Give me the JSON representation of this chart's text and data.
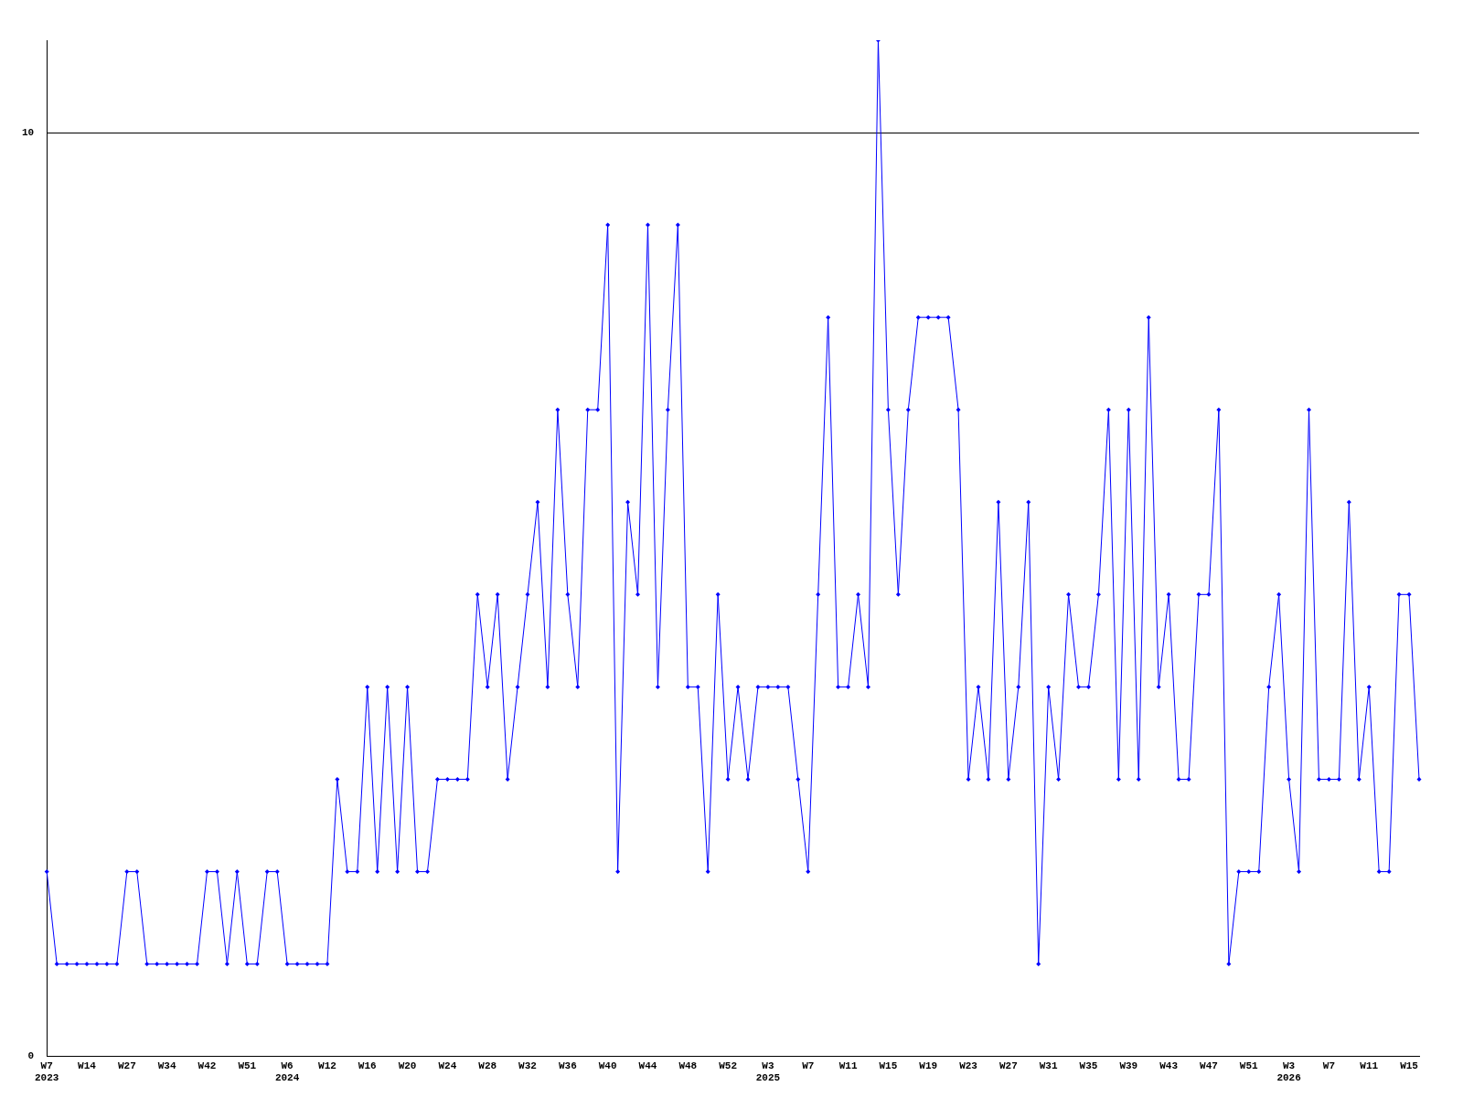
{
  "chart_data": {
    "type": "line",
    "categories": [
      "W7\n2023",
      null,
      null,
      null,
      "W14",
      null,
      null,
      null,
      "W27",
      null,
      null,
      null,
      "W34",
      null,
      null,
      null,
      "W42",
      null,
      null,
      null,
      "W51",
      null,
      null,
      null,
      "W6\n2024",
      null,
      null,
      null,
      "W12",
      null,
      null,
      null,
      "W16",
      null,
      null,
      null,
      "W20",
      null,
      null,
      null,
      "W24",
      null,
      null,
      null,
      "W28",
      null,
      null,
      null,
      "W32",
      null,
      null,
      null,
      "W36",
      null,
      null,
      null,
      "W40",
      null,
      null,
      null,
      "W44",
      null,
      null,
      null,
      "W48",
      null,
      null,
      null,
      "W52",
      null,
      null,
      null,
      "W3\n2025",
      null,
      null,
      null,
      "W7",
      null,
      null,
      null,
      "W11",
      null,
      null,
      null,
      "W15",
      null,
      null,
      null,
      "W19",
      null,
      null,
      null,
      "W23",
      null,
      null,
      null,
      "W27",
      null,
      null,
      null,
      "W31",
      null,
      null,
      null,
      "W35",
      null,
      null,
      null,
      "W39",
      null,
      null,
      null,
      "W43",
      null,
      null,
      null,
      "W47",
      null,
      null,
      null,
      "W51",
      null,
      null,
      null,
      "W3\n2026",
      null,
      null,
      null,
      "W7",
      null,
      null,
      null,
      "W11",
      null,
      null,
      null,
      "W15",
      null
    ],
    "values": [
      2,
      1,
      1,
      1,
      1,
      1,
      1,
      1,
      2,
      2,
      1,
      1,
      1,
      1,
      1,
      1,
      2,
      2,
      1,
      2,
      1,
      1,
      2,
      2,
      1,
      1,
      1,
      1,
      1,
      3,
      2,
      2,
      4,
      2,
      4,
      2,
      4,
      2,
      2,
      3,
      3,
      3,
      3,
      5,
      4,
      5,
      3,
      4,
      5,
      6,
      4,
      7,
      5,
      4,
      7,
      7,
      9,
      2,
      6,
      5,
      9,
      4,
      7,
      9,
      4,
      4,
      2,
      5,
      3,
      4,
      3,
      4,
      4,
      4,
      4,
      3,
      2,
      5,
      8,
      4,
      4,
      5,
      4,
      11,
      7,
      5,
      7,
      8,
      8,
      8,
      8,
      7,
      3,
      4,
      3,
      6,
      3,
      4,
      6,
      1,
      4,
      3,
      5,
      4,
      4,
      5,
      7,
      3,
      7,
      3,
      8,
      4,
      5,
      3,
      3,
      5,
      5,
      7,
      1,
      2,
      2,
      2,
      4,
      5,
      3,
      2,
      7,
      3,
      3,
      3,
      6,
      3,
      4,
      2,
      2,
      5,
      5,
      3
    ],
    "color": "#0000ff",
    "ylim": [
      0,
      11
    ],
    "yticks": [
      0,
      10
    ],
    "grid": "y",
    "marker": "diamond"
  }
}
